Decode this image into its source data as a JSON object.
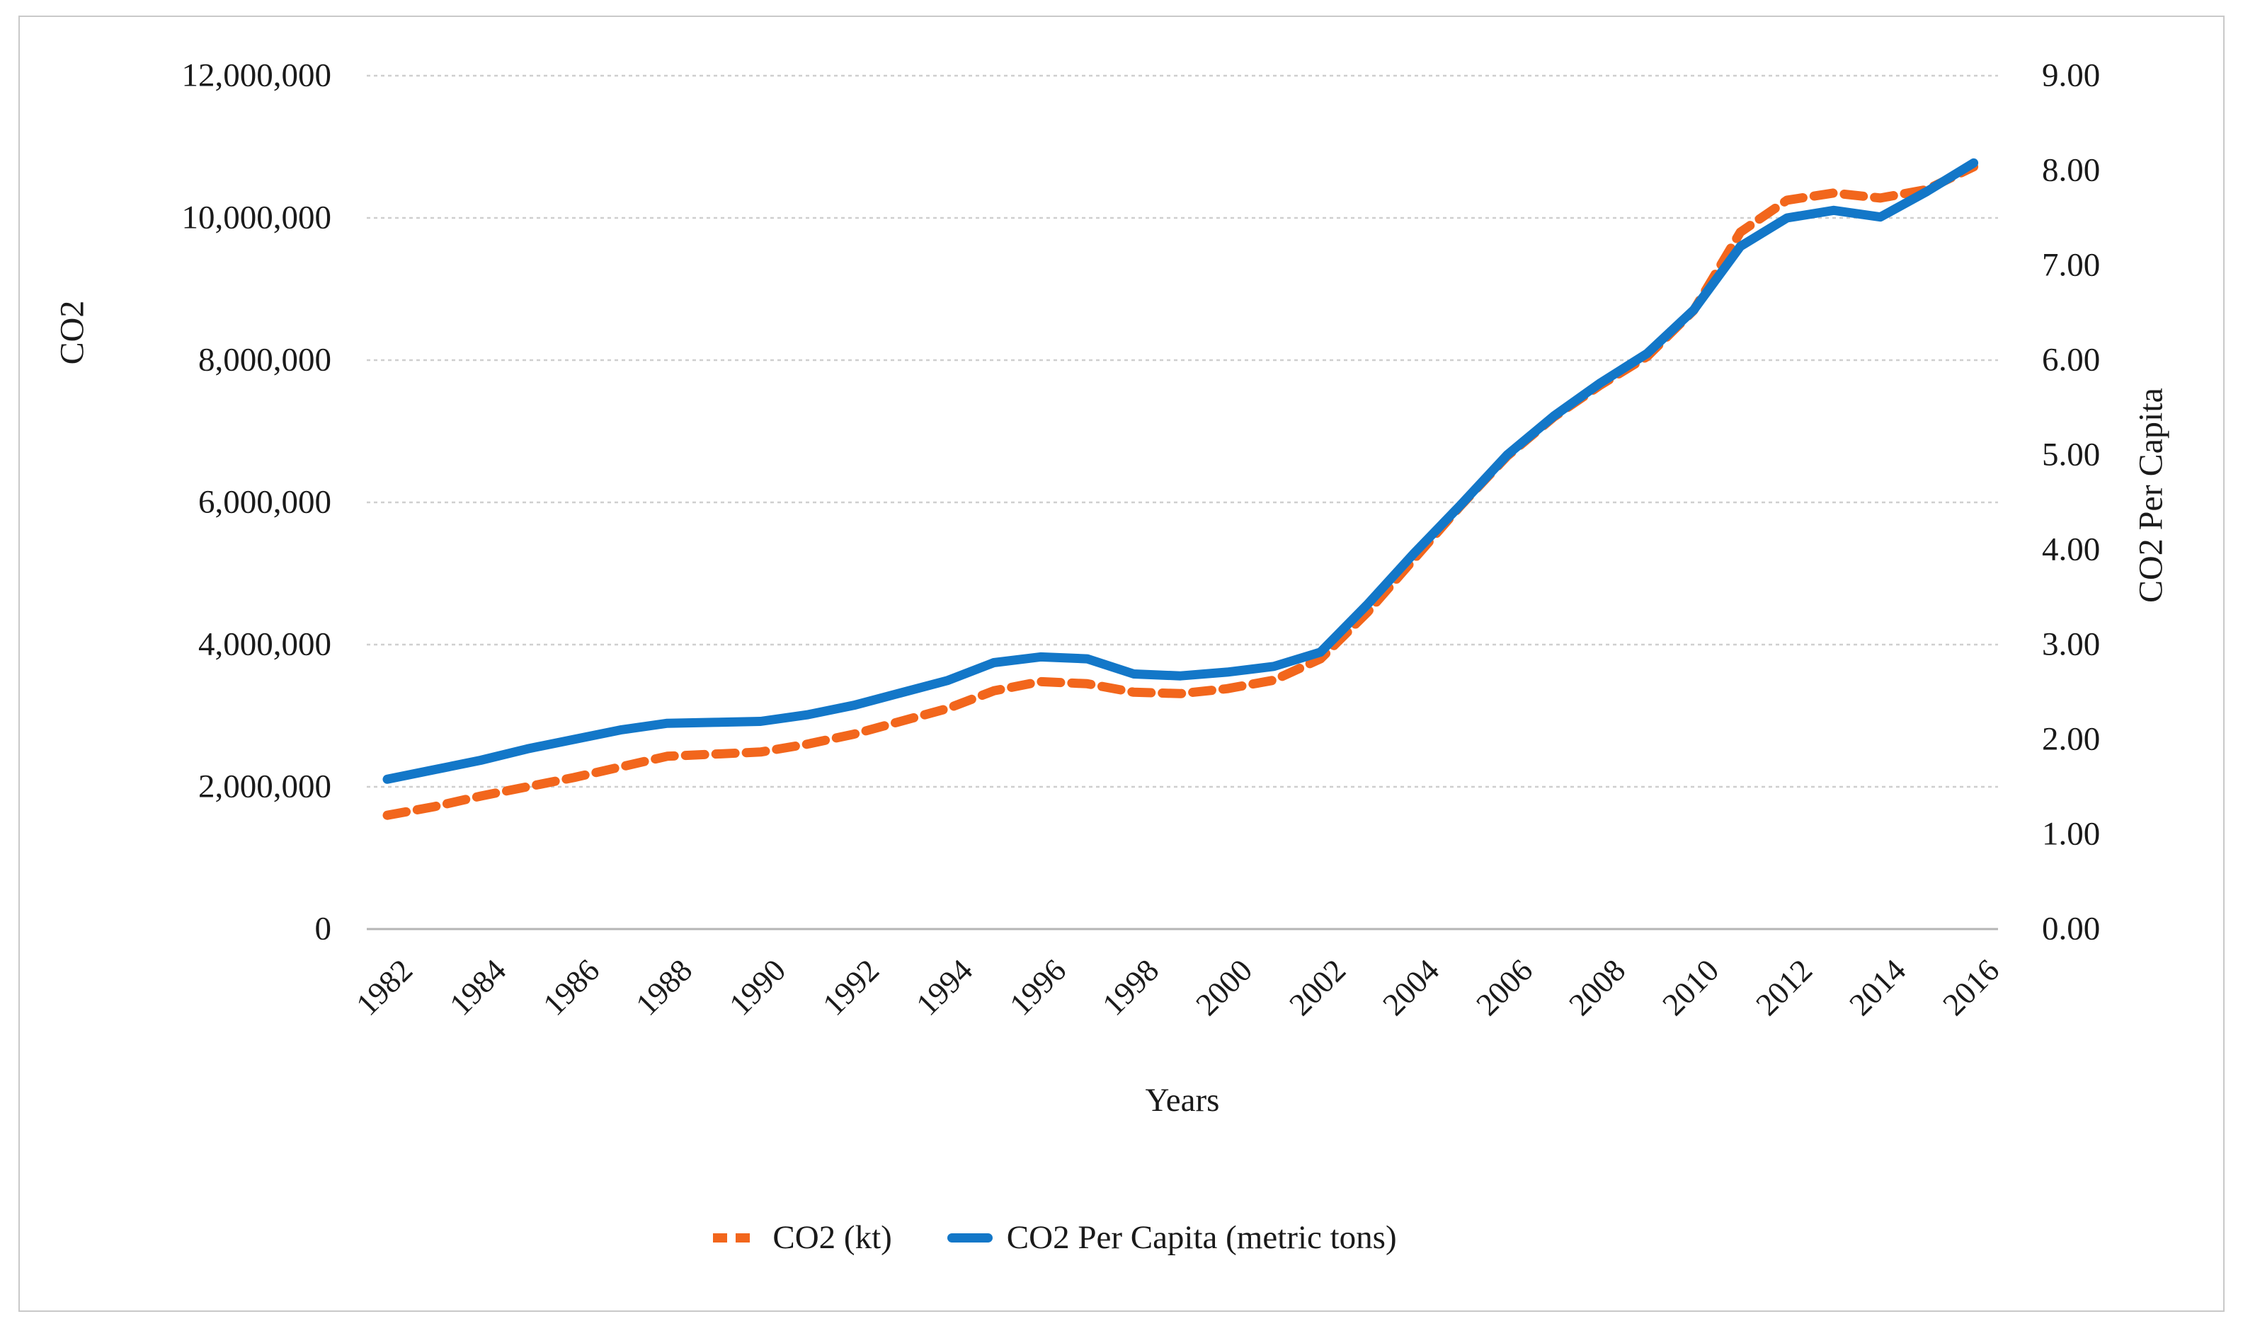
{
  "figure": {
    "left_axis": {
      "title": "CO2",
      "ticks": [
        {
          "label": "12,000,000",
          "value": 12000000
        },
        {
          "label": "10,000,000",
          "value": 10000000
        },
        {
          "label": "8,000,000",
          "value": 8000000
        },
        {
          "label": "6,000,000",
          "value": 6000000
        },
        {
          "label": "4,000,000",
          "value": 4000000
        },
        {
          "label": "2,000,000",
          "value": 2000000
        },
        {
          "label": "0",
          "value": 0
        }
      ]
    },
    "right_axis": {
      "title": "CO2 Per Capita",
      "ticks": [
        {
          "label": "9.00",
          "value": 9
        },
        {
          "label": "8.00",
          "value": 8
        },
        {
          "label": "7.00",
          "value": 7
        },
        {
          "label": "6.00",
          "value": 6
        },
        {
          "label": "5.00",
          "value": 5
        },
        {
          "label": "4.00",
          "value": 4
        },
        {
          "label": "3.00",
          "value": 3
        },
        {
          "label": "2.00",
          "value": 2
        },
        {
          "label": "1.00",
          "value": 1
        },
        {
          "label": "0.00",
          "value": 0
        }
      ]
    },
    "x_axis": {
      "title": "Years",
      "tick_years": [
        1982,
        1984,
        1986,
        1988,
        1990,
        1992,
        1994,
        1996,
        1998,
        2000,
        2002,
        2004,
        2006,
        2008,
        2010,
        2012,
        2014,
        2016
      ]
    },
    "legend": [
      {
        "label": "CO2 (kt)",
        "style": "dashed"
      },
      {
        "label": "CO2 Per Capita (metric tons)",
        "style": "solid"
      }
    ]
  },
  "colors": {
    "co2_kt": "#f2661c",
    "co2_per_capita": "#1377c8",
    "gridline": "#cfcfcf",
    "axis_line": "#b5b5b5",
    "text": "#1a1a1a"
  },
  "chart_data": {
    "type": "line",
    "title": "",
    "xlabel": "Years",
    "ylabel_left": "CO2",
    "ylabel_right": "CO2 Per Capita",
    "left_ylim": [
      0,
      12000000
    ],
    "right_ylim": [
      0,
      9
    ],
    "grid": true,
    "legend_position": "bottom",
    "x": [
      1982,
      1983,
      1984,
      1985,
      1986,
      1987,
      1988,
      1989,
      1990,
      1991,
      1992,
      1993,
      1994,
      1995,
      1996,
      1997,
      1998,
      1999,
      2000,
      2001,
      2002,
      2003,
      2004,
      2005,
      2006,
      2007,
      2008,
      2009,
      2010,
      2011,
      2012,
      2013,
      2014,
      2015,
      2016
    ],
    "series": [
      {
        "name": "CO2 (kt)",
        "axis": "left",
        "style": "dashed",
        "values": [
          1600000,
          1720000,
          1870000,
          2000000,
          2130000,
          2280000,
          2430000,
          2460000,
          2490000,
          2600000,
          2740000,
          2920000,
          3100000,
          3350000,
          3480000,
          3450000,
          3330000,
          3310000,
          3380000,
          3500000,
          3800000,
          4450000,
          5200000,
          5950000,
          6650000,
          7200000,
          7650000,
          8050000,
          8700000,
          9800000,
          10250000,
          10350000,
          10280000,
          10400000,
          10720000
        ]
      },
      {
        "name": "CO2 Per Capita (metric tons)",
        "axis": "right",
        "style": "solid",
        "values": [
          1.58,
          1.68,
          1.78,
          1.9,
          2.0,
          2.1,
          2.17,
          2.18,
          2.19,
          2.26,
          2.36,
          2.49,
          2.62,
          2.81,
          2.87,
          2.85,
          2.69,
          2.67,
          2.71,
          2.77,
          2.92,
          3.42,
          3.96,
          4.47,
          5.0,
          5.41,
          5.76,
          6.07,
          6.53,
          7.2,
          7.5,
          7.58,
          7.51,
          7.78,
          8.08
        ]
      }
    ]
  }
}
